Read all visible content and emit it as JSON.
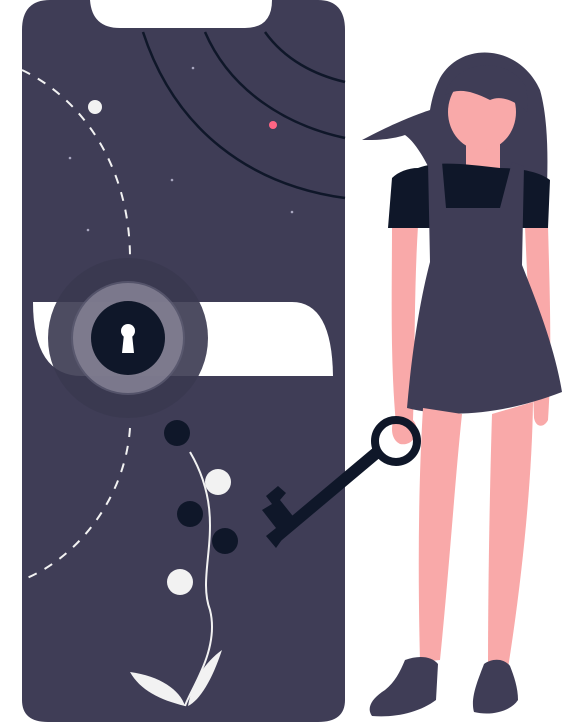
{
  "illustration": {
    "subject": "unlock-security",
    "colors": {
      "phone_body": "#3f3d56",
      "background": "#ffffff",
      "dark": "#0f1729",
      "skin": "#f9a9a9",
      "hair": "#3f3d56",
      "shirt": "#0f1729",
      "dress": "#3f3d56",
      "accent_dot": "#ff6584",
      "light_dot": "#f2f2f2",
      "keyhole_rings": "#6b6b7b"
    }
  }
}
